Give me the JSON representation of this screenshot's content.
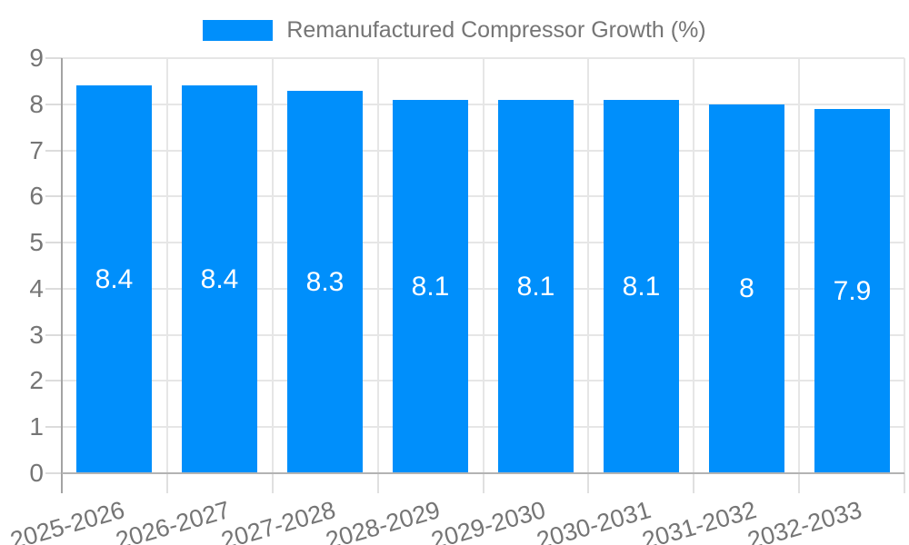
{
  "legend": {
    "label": "Remanufactured Compressor Growth (%)",
    "swatch_color": "#008FFB"
  },
  "chart_data": {
    "type": "bar",
    "title": "Remanufactured Compressor Growth (%)",
    "categories": [
      "2025-2026",
      "2026-2027",
      "2027-2028",
      "2028-2029",
      "2029-2030",
      "2030-2031",
      "2031-2032",
      "2032-2033"
    ],
    "series": [
      {
        "name": "Remanufactured Compressor Growth (%)",
        "values": [
          8.4,
          8.4,
          8.3,
          8.1,
          8.1,
          8.1,
          8,
          7.9
        ]
      }
    ],
    "value_labels": [
      "8.4",
      "8.4",
      "8.3",
      "8.1",
      "8.1",
      "8.1",
      "8",
      "7.9"
    ],
    "xlabel": "",
    "ylabel": "",
    "ylim": [
      0,
      9
    ],
    "ytick_step": 1,
    "ytick_labels": [
      "0",
      "1",
      "2",
      "3",
      "4",
      "5",
      "6",
      "7",
      "8",
      "9"
    ],
    "grid": true,
    "legend_position": "top-center",
    "colors": {
      "bar": "#008FFB",
      "value_label": "#ffffff",
      "axis_text": "#757575",
      "gridline": "#e6e6e6",
      "axis_line": "#b3b3b3",
      "background": "#ffffff"
    }
  }
}
